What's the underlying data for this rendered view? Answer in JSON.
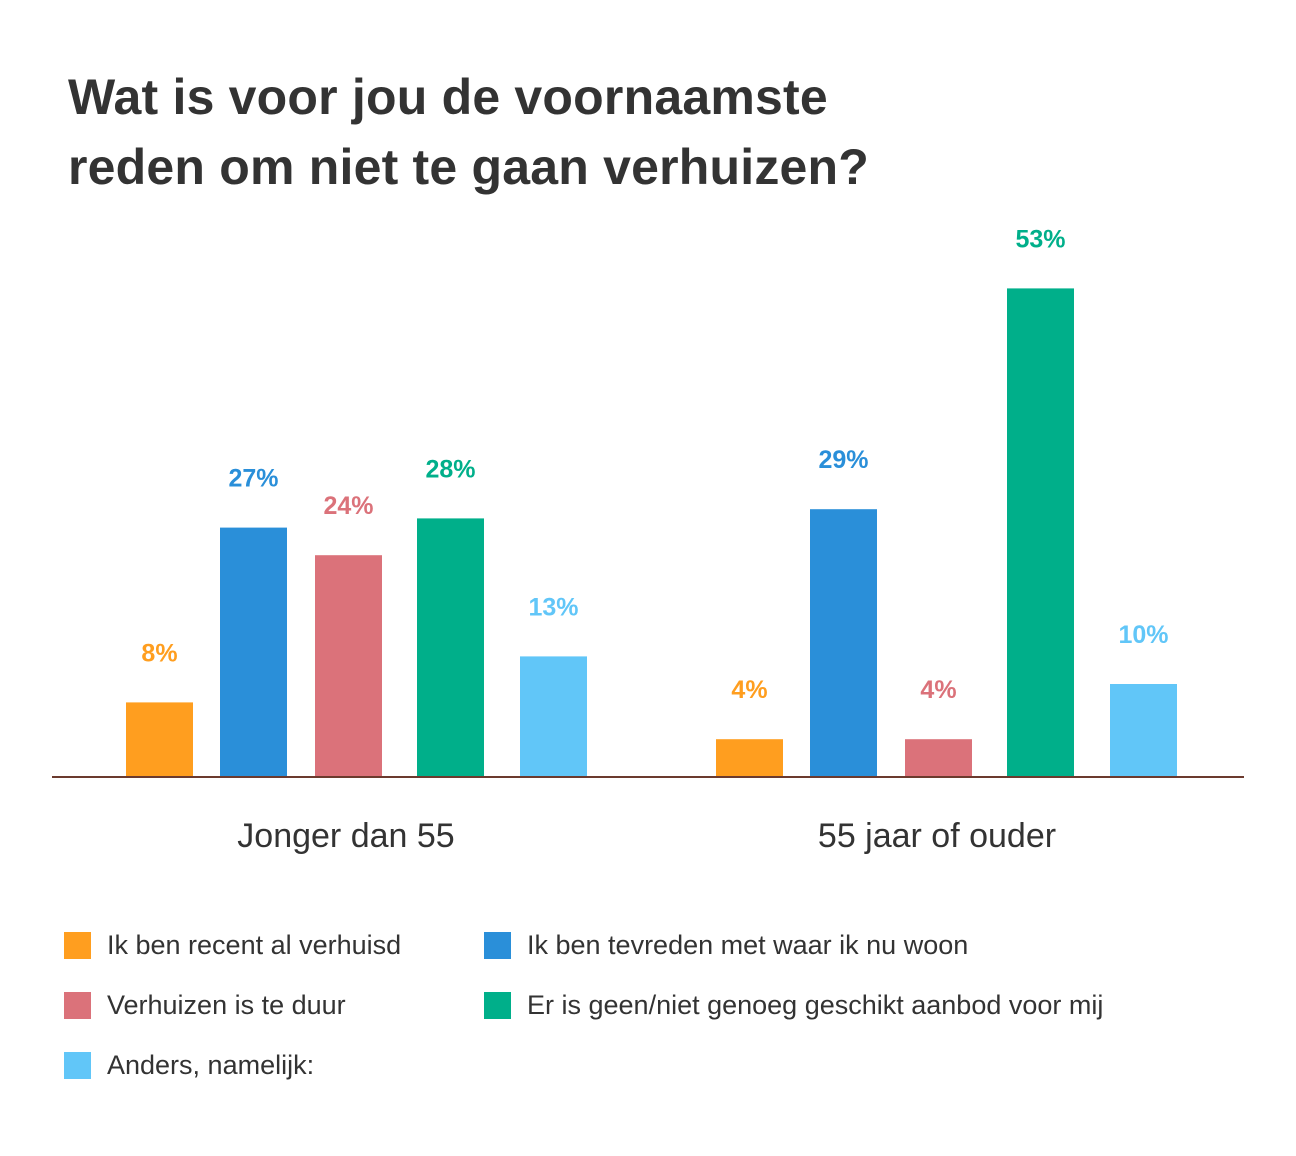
{
  "colors": {
    "recent": "#FF9E1F",
    "tevreden": "#2A8FD9",
    "duur": "#DB727A",
    "aanbod": "#00AF8A",
    "anders": "#61C6F8",
    "axis": "#6B3A2E",
    "text": "#333333"
  },
  "chart_data": {
    "type": "bar",
    "title": "Wat is voor jou de voornaamste reden om niet te gaan verhuizen?",
    "title_lines": [
      "Wat is voor jou de voornaamste",
      "reden om niet te gaan verhuizen?"
    ],
    "categories": [
      "Jonger dan 55",
      "55 jaar of ouder"
    ],
    "series": [
      {
        "name": "Ik ben recent al verhuisd",
        "key": "recent",
        "values": [
          8,
          4
        ],
        "labels": [
          "8%",
          "4%"
        ]
      },
      {
        "name": "Ik ben tevreden met waar ik nu woon",
        "key": "tevreden",
        "values": [
          27,
          29
        ],
        "labels": [
          "27%",
          "29%"
        ]
      },
      {
        "name": "Verhuizen is te duur",
        "key": "duur",
        "values": [
          24,
          4
        ],
        "labels": [
          "24%",
          "4%"
        ]
      },
      {
        "name": "Er is geen/niet genoeg geschikt aanbod voor mij",
        "key": "aanbod",
        "values": [
          28,
          53
        ],
        "labels": [
          "28%",
          "53%"
        ]
      },
      {
        "name": "Anders, namelijk:",
        "key": "anders",
        "values": [
          13,
          10
        ],
        "labels": [
          "13%",
          "10%"
        ]
      }
    ],
    "xlabel": "",
    "ylabel": "",
    "ylim": [
      0,
      53
    ],
    "grid": false,
    "legend_position": "bottom"
  }
}
